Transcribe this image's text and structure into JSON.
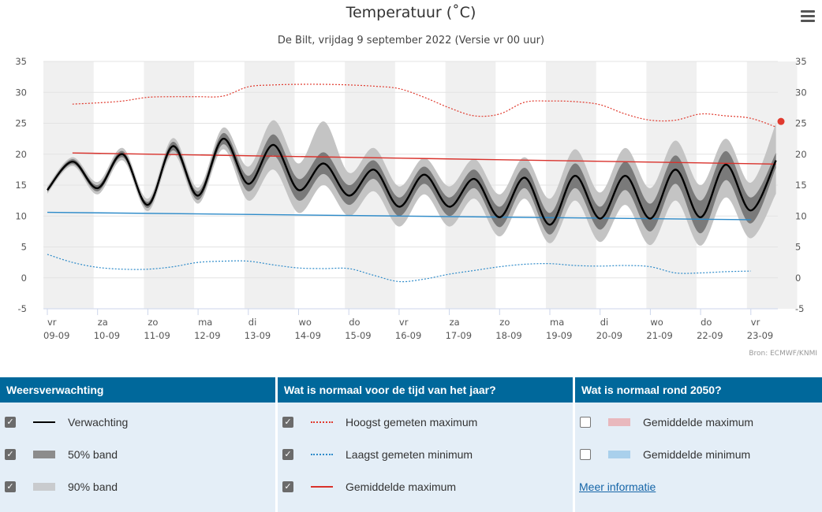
{
  "chart_data": {
    "type": "line",
    "title": "Temperatuur (˚C)",
    "subtitle": "De Bilt, vrijdag 9 september 2022 (Versie vr 00 uur)",
    "credit": "Bron: ECMWF/KNMI",
    "ylim": [
      -5,
      35
    ],
    "yticks": [
      35,
      30,
      25,
      20,
      15,
      10,
      5,
      0,
      -5
    ],
    "xlim": [
      0,
      14.6
    ],
    "days": [
      {
        "weekday": "vr",
        "date": "09-09"
      },
      {
        "weekday": "za",
        "date": "10-09"
      },
      {
        "weekday": "zo",
        "date": "11-09"
      },
      {
        "weekday": "ma",
        "date": "12-09"
      },
      {
        "weekday": "di",
        "date": "13-09"
      },
      {
        "weekday": "wo",
        "date": "14-09"
      },
      {
        "weekday": "do",
        "date": "15-09"
      },
      {
        "weekday": "vr",
        "date": "16-09"
      },
      {
        "weekday": "za",
        "date": "17-09"
      },
      {
        "weekday": "zo",
        "date": "18-09"
      },
      {
        "weekday": "ma",
        "date": "19-09"
      },
      {
        "weekday": "di",
        "date": "20-09"
      },
      {
        "weekday": "wo",
        "date": "21-09"
      },
      {
        "weekday": "do",
        "date": "22-09"
      },
      {
        "weekday": "vr",
        "date": "23-09"
      }
    ],
    "forecast": {
      "name": "Verwachting",
      "x": [
        0,
        0.5,
        1,
        1.5,
        2,
        2.5,
        3,
        3.5,
        4,
        4.5,
        5,
        5.5,
        6,
        6.5,
        7,
        7.5,
        8,
        8.5,
        9,
        9.5,
        10,
        10.5,
        11,
        11.5,
        12,
        12.5,
        13,
        13.5,
        14,
        14.5
      ],
      "values": [
        14.2,
        18.8,
        14.5,
        20,
        11.8,
        21.3,
        13.3,
        22.5,
        15.2,
        21.5,
        14.2,
        18.5,
        13.3,
        17.5,
        11.5,
        16.7,
        11.5,
        16,
        9.8,
        16.2,
        8.6,
        16.5,
        9.6,
        16.5,
        9.6,
        17.5,
        9.8,
        18.3,
        10.9,
        19
      ]
    },
    "band50": {
      "name": "50% band",
      "upper": [
        14.5,
        19.2,
        15,
        20.5,
        12.3,
        22,
        14,
        23.4,
        16.5,
        23.2,
        16,
        20.3,
        15,
        19,
        13,
        18,
        13,
        17.5,
        11.5,
        17.8,
        10.5,
        18.5,
        11.5,
        18.8,
        12,
        19.8,
        12.5,
        20.5,
        13,
        20.2
      ],
      "lower": [
        13.9,
        18.4,
        14,
        19.5,
        11.3,
        20.6,
        12.6,
        21.6,
        14,
        19.8,
        12.5,
        16.8,
        11.8,
        16,
        10,
        15.2,
        10,
        14.5,
        8.2,
        14.5,
        7,
        14.5,
        7.8,
        14.2,
        7.5,
        15.2,
        7.2,
        15.8,
        8.8,
        17.8
      ]
    },
    "band90": {
      "name": "90% band",
      "upper": [
        14.8,
        19.5,
        15.5,
        21,
        12.8,
        22.6,
        14.6,
        24.3,
        18,
        25.5,
        18.5,
        25.3,
        17,
        21,
        14.8,
        19.4,
        14.8,
        19.2,
        13.5,
        19.5,
        12.8,
        20.8,
        13.8,
        21,
        14.5,
        22.2,
        15,
        22.5,
        15.4,
        25
      ],
      "lower": [
        13.6,
        18.1,
        13.5,
        19,
        10.8,
        20,
        12,
        20.8,
        12.5,
        17.5,
        10.5,
        15,
        10,
        14,
        8.3,
        13.5,
        8.3,
        12.8,
        6.7,
        12.8,
        5.6,
        12.5,
        5.8,
        11.8,
        5.3,
        12.5,
        5.2,
        13,
        6.4,
        13.6
      ]
    },
    "record_max": {
      "name": "Hoogst gemeten maximum",
      "x": [
        0.5,
        1,
        1.5,
        2,
        2.5,
        3,
        3.5,
        4,
        4.5,
        5,
        5.5,
        6,
        6.5,
        7,
        7.5,
        8,
        8.5,
        9,
        9.5,
        10,
        10.5,
        11,
        11.5,
        12,
        12.5,
        13,
        13.5,
        14,
        14.5
      ],
      "values": [
        28.1,
        28.3,
        28.6,
        29.2,
        29.3,
        29.3,
        29.4,
        30.9,
        31.2,
        31.3,
        31.3,
        31.2,
        31.0,
        30.6,
        29.2,
        27.5,
        26.2,
        26.5,
        28.4,
        28.6,
        28.5,
        28.0,
        26.5,
        25.5,
        25.5,
        26.5,
        26.2,
        25.8,
        24.4
      ]
    },
    "record_min": {
      "name": "Laagst gemeten minimum",
      "x": [
        0,
        0.5,
        1,
        1.5,
        2,
        2.5,
        3,
        3.5,
        4,
        4.5,
        5,
        5.5,
        6,
        6.5,
        7,
        7.5,
        8,
        8.5,
        9,
        9.5,
        10,
        10.5,
        11,
        11.5,
        12,
        12.5,
        13,
        13.5,
        14
      ],
      "values": [
        3.8,
        2.5,
        1.7,
        1.4,
        1.4,
        1.8,
        2.5,
        2.7,
        2.7,
        2.1,
        1.6,
        1.5,
        1.5,
        0.4,
        -0.6,
        -0.2,
        0.6,
        1.2,
        1.8,
        2.2,
        2.3,
        2.0,
        1.9,
        2.0,
        1.8,
        0.8,
        0.8,
        1.0,
        1.1
      ]
    },
    "avg_max": {
      "name": "Gemiddelde maximum",
      "x": [
        0.5,
        14.5
      ],
      "values": [
        20.2,
        18.4
      ]
    },
    "avg_min": {
      "name": "Gemiddelde minimum",
      "x": [
        0,
        14
      ],
      "values": [
        10.6,
        9.4
      ]
    },
    "marker": {
      "x": 14.6,
      "value": 25.3
    }
  },
  "colors": {
    "forecast": "#000000",
    "band50": "#7a7a7a",
    "band90": "#c4c4c4",
    "record_max": "#e03a2e",
    "record_min": "#2e8bc9",
    "avg_max": "#d9312b",
    "avg_min": "#2e8bc9",
    "stripe": "#f0f0f0",
    "header": "#00689b",
    "panel": "#e4eef7",
    "band50_swatch": "#8c8c8c",
    "band90_swatch": "#c9cbce",
    "future_max_swatch": "#e9b8bd",
    "future_min_swatch": "#a9d0ec"
  },
  "legend": {
    "col1": {
      "header": "Weersverwachting",
      "items": [
        {
          "label": "Verwachting",
          "checked": true
        },
        {
          "label": "50% band",
          "checked": true
        },
        {
          "label": "90% band",
          "checked": true
        }
      ]
    },
    "col2": {
      "header": "Wat is normaal voor de tijd van het jaar?",
      "items": [
        {
          "label": "Hoogst gemeten maximum",
          "checked": true
        },
        {
          "label": "Laagst gemeten minimum",
          "checked": true
        },
        {
          "label": "Gemiddelde maximum",
          "checked": true
        }
      ]
    },
    "col3": {
      "header": "Wat is normaal rond 2050?",
      "items": [
        {
          "label": "Gemiddelde maximum",
          "checked": false
        },
        {
          "label": "Gemiddelde minimum",
          "checked": false
        }
      ],
      "link": "Meer informatie"
    }
  }
}
